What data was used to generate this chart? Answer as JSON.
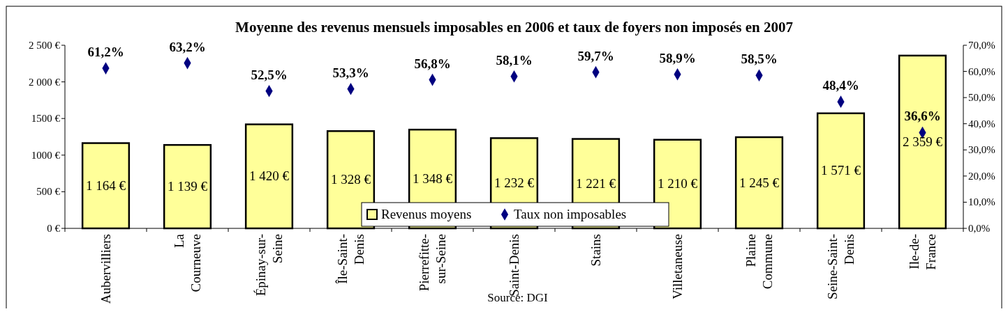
{
  "chart_data": {
    "type": "bar",
    "title": "Moyenne des revenus mensuels imposables en 2006 et taux de foyers non imposés en 2007",
    "categories": [
      "Aubervilliers",
      "La\nCourneuve",
      "Épinay-sur-\nSeine",
      "Île-Saint-\nDenis",
      "Pierrefitte-\nsur-Seine",
      "Saint-Denis",
      "Stains",
      "Villetaneuse",
      "Plaine\nCommune",
      "Seine-Saint-\nDenis",
      "Ile-de-\nFrance"
    ],
    "series": [
      {
        "name": "Revenus moyens",
        "color": "#ffff99",
        "values": [
          1164,
          1139,
          1420,
          1328,
          1348,
          1232,
          1221,
          1210,
          1245,
          1571,
          2359
        ],
        "value_labels": [
          "1 164 €",
          "1 139 €",
          "1 420 €",
          "1 328 €",
          "1 348 €",
          "1 232 €",
          "1 221 €",
          "1 210 €",
          "1 245 €",
          "1 571 €",
          "2 359 €"
        ]
      },
      {
        "name": "Taux non imposables",
        "type": "scatter",
        "axis": "y2",
        "marker": "diamond",
        "color": "#000080",
        "values": [
          61.2,
          63.2,
          52.5,
          53.3,
          56.8,
          58.1,
          59.7,
          58.9,
          58.5,
          48.4,
          36.6
        ],
        "value_labels": [
          "61,2%",
          "63,2%",
          "52,5%",
          "53,3%",
          "56,8%",
          "58,1%",
          "59,7%",
          "58,9%",
          "58,5%",
          "48,4%",
          "36,6%"
        ]
      }
    ],
    "ylim": [
      0,
      2500
    ],
    "yticks": [
      {
        "value": 0,
        "label": "0 €"
      },
      {
        "value": 500,
        "label": "500 €"
      },
      {
        "value": 1000,
        "label": "1000 €"
      },
      {
        "value": 1500,
        "label": "1500 €"
      },
      {
        "value": 2000,
        "label": "2 000 €"
      },
      {
        "value": 2500,
        "label": "2 500 €"
      }
    ],
    "y2lim": [
      0,
      70
    ],
    "y2ticks": [
      {
        "value": 0,
        "label": "0,0%"
      },
      {
        "value": 10,
        "label": "10,0%"
      },
      {
        "value": 20,
        "label": "20,0%"
      },
      {
        "value": 30,
        "label": "30,0%"
      },
      {
        "value": 40,
        "label": "40,0%"
      },
      {
        "value": 50,
        "label": "50,0%"
      },
      {
        "value": 60,
        "label": "60,0%"
      },
      {
        "value": 70,
        "label": "70,0%"
      }
    ],
    "legend": "bottom",
    "grid": false,
    "annotations": [
      "Source: DGI"
    ]
  }
}
